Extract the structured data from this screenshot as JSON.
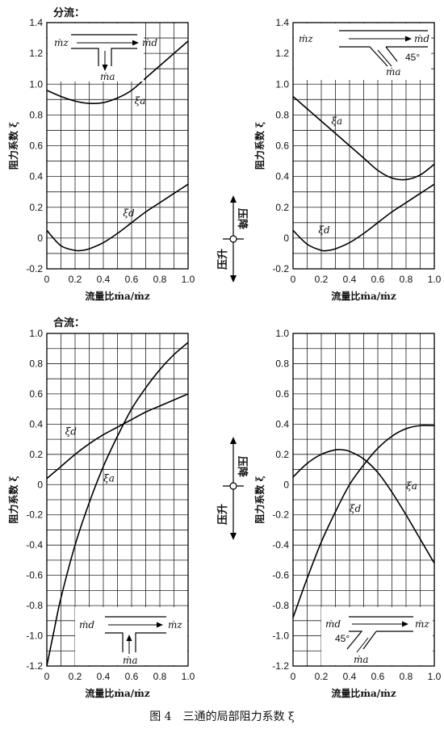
{
  "caption": "图 4　三通的局部阻力系数 ξ",
  "sections": {
    "split": "分流：",
    "merge": "合流："
  },
  "direction": {
    "drop": "压降",
    "rise": "压升"
  },
  "chart_data": [
    {
      "type": "line",
      "id": "split-straight",
      "xlabel": "流量比ṁa/ṁz",
      "ylabel": "阻力系数 ξ",
      "xlim": [
        0,
        1.0
      ],
      "ylim": [
        -0.2,
        1.4
      ],
      "xticks": [
        "0",
        "0.2",
        "0.4",
        "0.6",
        "0.8",
        "1.0"
      ],
      "yticks": [
        "-0.2",
        "0",
        "0.2",
        "0.4",
        "0.6",
        "0.8",
        "1.0",
        "1.2",
        "1.4"
      ],
      "grid": true,
      "series": [
        {
          "name": "ξa",
          "x": [
            0,
            0.1,
            0.2,
            0.3,
            0.4,
            0.5,
            0.6,
            0.7,
            0.8,
            0.9,
            1.0
          ],
          "y": [
            0.96,
            0.92,
            0.89,
            0.875,
            0.88,
            0.91,
            0.96,
            1.04,
            1.12,
            1.2,
            1.28
          ]
        },
        {
          "name": "ξd",
          "x": [
            0,
            0.1,
            0.2,
            0.25,
            0.3,
            0.4,
            0.5,
            0.6,
            0.7,
            0.8,
            0.9,
            1.0
          ],
          "y": [
            0.05,
            -0.05,
            -0.08,
            -0.08,
            -0.07,
            -0.03,
            0.03,
            0.1,
            0.17,
            0.23,
            0.29,
            0.35
          ]
        }
      ],
      "inset": {
        "labels": [
          "ṁz",
          "ṁd",
          "ṁa"
        ]
      }
    },
    {
      "type": "line",
      "id": "split-45",
      "xlabel": "流量比ṁa/ṁz",
      "ylabel": "阻力系数 ξ",
      "xlim": [
        0,
        1.0
      ],
      "ylim": [
        -0.2,
        1.4
      ],
      "xticks": [
        "0",
        "0.2",
        "0.4",
        "0.6",
        "0.8",
        "1.0"
      ],
      "yticks": [
        "-0.2",
        "0",
        "0.2",
        "0.4",
        "0.6",
        "0.8",
        "1.0",
        "1.2",
        "1.4"
      ],
      "grid": true,
      "series": [
        {
          "name": "ξa",
          "x": [
            0,
            0.1,
            0.2,
            0.3,
            0.4,
            0.5,
            0.6,
            0.7,
            0.8,
            0.9,
            1.0
          ],
          "y": [
            0.92,
            0.84,
            0.76,
            0.68,
            0.6,
            0.52,
            0.44,
            0.39,
            0.38,
            0.41,
            0.48
          ]
        },
        {
          "name": "ξd",
          "x": [
            0,
            0.1,
            0.2,
            0.25,
            0.3,
            0.4,
            0.5,
            0.6,
            0.7,
            0.8,
            0.9,
            1.0
          ],
          "y": [
            0.05,
            -0.04,
            -0.08,
            -0.08,
            -0.07,
            -0.03,
            0.03,
            0.1,
            0.17,
            0.23,
            0.29,
            0.35
          ]
        }
      ],
      "inset": {
        "labels": [
          "ṁz",
          "ṁd",
          "ṁa",
          "45°"
        ]
      }
    },
    {
      "type": "line",
      "id": "merge-straight",
      "xlabel": "流量比ṁa/ṁz",
      "ylabel": "阻力系数 ξ",
      "xlim": [
        0,
        1.0
      ],
      "ylim": [
        -1.2,
        1.0
      ],
      "xticks": [
        "0",
        "0.2",
        "0.4",
        "0.6",
        "0.8",
        "1.0"
      ],
      "yticks": [
        "-1.2",
        "-1.0",
        "-0.8",
        "-0.6",
        "-0.4",
        "-0.2",
        "0",
        "0.2",
        "0.4",
        "0.6",
        "0.8",
        "1.0"
      ],
      "grid": true,
      "series": [
        {
          "name": "ξd",
          "x": [
            0,
            0.1,
            0.2,
            0.3,
            0.4,
            0.5,
            0.6,
            0.7,
            0.8,
            0.9,
            1.0
          ],
          "y": [
            0.04,
            0.12,
            0.2,
            0.27,
            0.33,
            0.38,
            0.43,
            0.48,
            0.52,
            0.56,
            0.6
          ]
        },
        {
          "name": "ξa",
          "x": [
            0,
            0.05,
            0.1,
            0.2,
            0.3,
            0.4,
            0.5,
            0.6,
            0.7,
            0.8,
            0.9,
            1.0
          ],
          "y": [
            -1.2,
            -0.97,
            -0.75,
            -0.4,
            -0.12,
            0.12,
            0.32,
            0.5,
            0.64,
            0.76,
            0.86,
            0.94
          ]
        }
      ],
      "inset": {
        "labels": [
          "ṁd",
          "ṁz",
          "ṁa"
        ]
      }
    },
    {
      "type": "line",
      "id": "merge-45",
      "xlabel": "流量比ṁa/ṁz",
      "ylabel": "阻力系数 ξ",
      "xlim": [
        0,
        1.0
      ],
      "ylim": [
        -1.2,
        1.0
      ],
      "xticks": [
        "0",
        "0.2",
        "0.4",
        "0.6",
        "0.8",
        "1.0"
      ],
      "yticks": [
        "-1.2",
        "-1.0",
        "-0.8",
        "-0.6",
        "-0.4",
        "-0.2",
        "0",
        "0.2",
        "0.4",
        "0.6",
        "0.8",
        "1.0"
      ],
      "grid": true,
      "series": [
        {
          "name": "ξa",
          "x": [
            0,
            0.1,
            0.2,
            0.3,
            0.35,
            0.4,
            0.5,
            0.6,
            0.7,
            0.8,
            0.9,
            1.0
          ],
          "y": [
            0.05,
            0.14,
            0.2,
            0.23,
            0.23,
            0.22,
            0.17,
            0.08,
            -0.05,
            -0.2,
            -0.36,
            -0.52
          ]
        },
        {
          "name": "ξd",
          "x": [
            0,
            0.1,
            0.2,
            0.3,
            0.4,
            0.5,
            0.6,
            0.7,
            0.8,
            0.9,
            1.0
          ],
          "y": [
            -0.88,
            -0.62,
            -0.38,
            -0.18,
            0.0,
            0.13,
            0.24,
            0.32,
            0.37,
            0.39,
            0.39
          ]
        }
      ],
      "inset": {
        "labels": [
          "ṁd",
          "ṁz",
          "ṁa",
          "45°"
        ]
      }
    }
  ]
}
